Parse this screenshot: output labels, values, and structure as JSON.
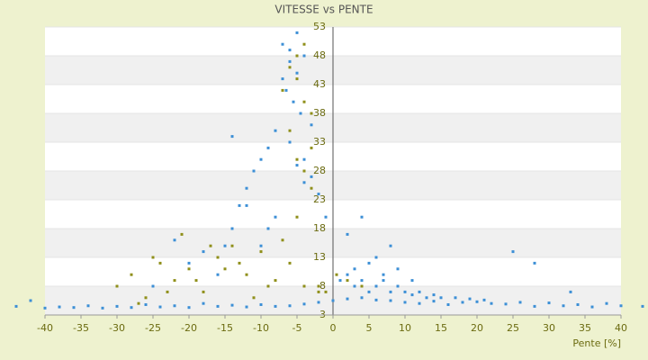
{
  "chart_data": {
    "type": "scatter",
    "title": "VITESSE vs PENTE",
    "x_label": "Pente [%]",
    "xlim": [
      -40,
      40
    ],
    "xticks": [
      -40,
      -35,
      -30,
      -25,
      -20,
      -15,
      -10,
      -5,
      0,
      5,
      10,
      15,
      20,
      25,
      30,
      35,
      40
    ],
    "ylim": [
      3,
      53
    ],
    "yticks": [
      3,
      8,
      13,
      18,
      23,
      28,
      33,
      38,
      43,
      48,
      53
    ],
    "grid": true,
    "series": [
      {
        "color": "#3c8fd6",
        "x": [
          -44,
          -42,
          -40,
          -38,
          -36,
          -34,
          -32,
          -30,
          -28,
          -26,
          -24,
          -22,
          -20,
          -18,
          -16,
          -14,
          -12,
          -10,
          -8,
          -6,
          -4,
          -2,
          0,
          2,
          4,
          6,
          8,
          10,
          12,
          14,
          16,
          18,
          20,
          22,
          24,
          26,
          28,
          30,
          32,
          34,
          36,
          38,
          40,
          43,
          -7,
          -6,
          -5,
          -4,
          -6.5,
          -5.5,
          -4.5,
          -3,
          -8,
          -9,
          -10,
          -11,
          -12,
          -13,
          -7,
          -6,
          -5,
          -4,
          -3,
          -2,
          -1,
          -8,
          -9,
          -15,
          -14,
          -6,
          -5,
          -4,
          1,
          2,
          3,
          4,
          5,
          6,
          7,
          8,
          9,
          10,
          11,
          12,
          13,
          14,
          15,
          17,
          19,
          21,
          3,
          5,
          7,
          9,
          11,
          6,
          8,
          2,
          4,
          25,
          28,
          33,
          -20,
          -18,
          -16,
          -25,
          -22,
          -14,
          -12,
          -10
        ],
        "values": [
          4.5,
          5.5,
          4.2,
          4.4,
          4.3,
          4.6,
          4.2,
          4.5,
          4.3,
          4.8,
          4.4,
          4.6,
          4.3,
          5,
          4.5,
          4.7,
          4.4,
          4.8,
          4.5,
          4.6,
          4.9,
          5.2,
          5.5,
          5.8,
          6,
          5.6,
          5.5,
          5.2,
          5,
          5.4,
          4.8,
          5.2,
          5.3,
          5,
          4.9,
          5.2,
          4.5,
          5.1,
          4.6,
          4.8,
          4.4,
          5,
          4.6,
          4.5,
          50,
          47,
          45,
          48,
          42,
          40,
          38,
          36,
          35,
          32,
          30,
          28,
          25,
          22,
          44,
          33,
          29,
          26,
          27,
          24,
          20,
          20,
          18,
          15,
          34,
          49,
          52,
          30,
          9,
          10,
          8,
          9,
          7,
          8,
          9,
          7,
          8,
          7,
          6.5,
          7,
          6,
          6.5,
          6,
          6,
          5.8,
          5.6,
          11,
          12,
          10,
          11,
          9,
          13,
          15,
          17,
          20,
          14,
          12,
          7,
          12,
          14,
          10,
          8,
          16,
          18,
          22,
          15
        ]
      },
      {
        "color": "#8f8f1a",
        "x": [
          -30,
          -28,
          -26,
          -24,
          -22,
          -20,
          -18,
          -16,
          -14,
          -12,
          -10,
          -8,
          -6,
          -4,
          -2,
          -27,
          -23,
          -19,
          -15,
          -13,
          -11,
          -9,
          -7,
          -5,
          -3,
          -17,
          -21,
          -25,
          -6,
          -5,
          -4,
          -3,
          -7,
          -6,
          -5,
          -4,
          -3,
          -5,
          -4,
          -2,
          -1,
          0.5,
          2,
          4
        ],
        "values": [
          8,
          10,
          6,
          12,
          9,
          11,
          7,
          13,
          15,
          10,
          14,
          9,
          12,
          8,
          7,
          5,
          7,
          9,
          11,
          12,
          6,
          8,
          16,
          20,
          25,
          15,
          17,
          13,
          46,
          44,
          40,
          38,
          42,
          35,
          30,
          28,
          32,
          48,
          50,
          8,
          7,
          10,
          9,
          8
        ]
      }
    ]
  }
}
